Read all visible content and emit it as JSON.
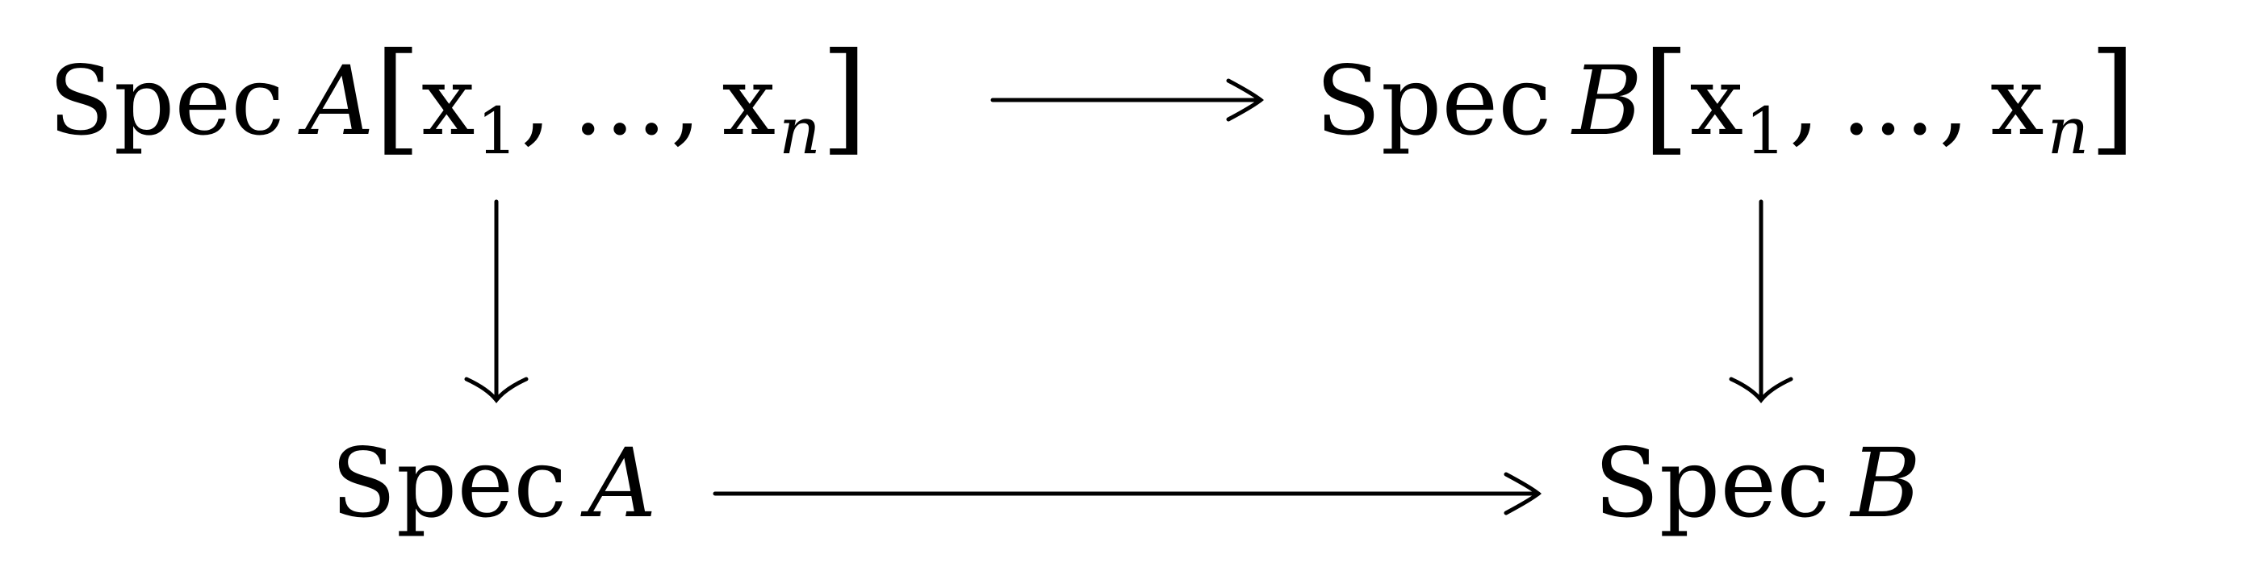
{
  "diagram": {
    "nodes": {
      "top_left": {
        "spec": "Spec",
        "ring": "A",
        "open_bracket": "[",
        "var_first": "x",
        "sub_first": "1",
        "comma_1": ",",
        "ellipsis": "…",
        "comma_2": ",",
        "var_last": "x",
        "sub_last": "n",
        "close_bracket": "]"
      },
      "top_right": {
        "spec": "Spec",
        "ring": "B",
        "open_bracket": "[",
        "var_first": "x",
        "sub_first": "1",
        "comma_1": ",",
        "ellipsis": "…",
        "comma_2": ",",
        "var_last": "x",
        "sub_last": "n",
        "close_bracket": "]"
      },
      "bottom_left": {
        "spec": "Spec",
        "ring": "A"
      },
      "bottom_right": {
        "spec": "Spec",
        "ring": "B"
      }
    },
    "edges": [
      {
        "from": "top_left",
        "to": "top_right"
      },
      {
        "from": "top_left",
        "to": "bottom_left"
      },
      {
        "from": "top_right",
        "to": "bottom_right"
      },
      {
        "from": "bottom_left",
        "to": "bottom_right"
      }
    ],
    "colors": {
      "ink": "#000000",
      "background": "#ffffff"
    }
  }
}
